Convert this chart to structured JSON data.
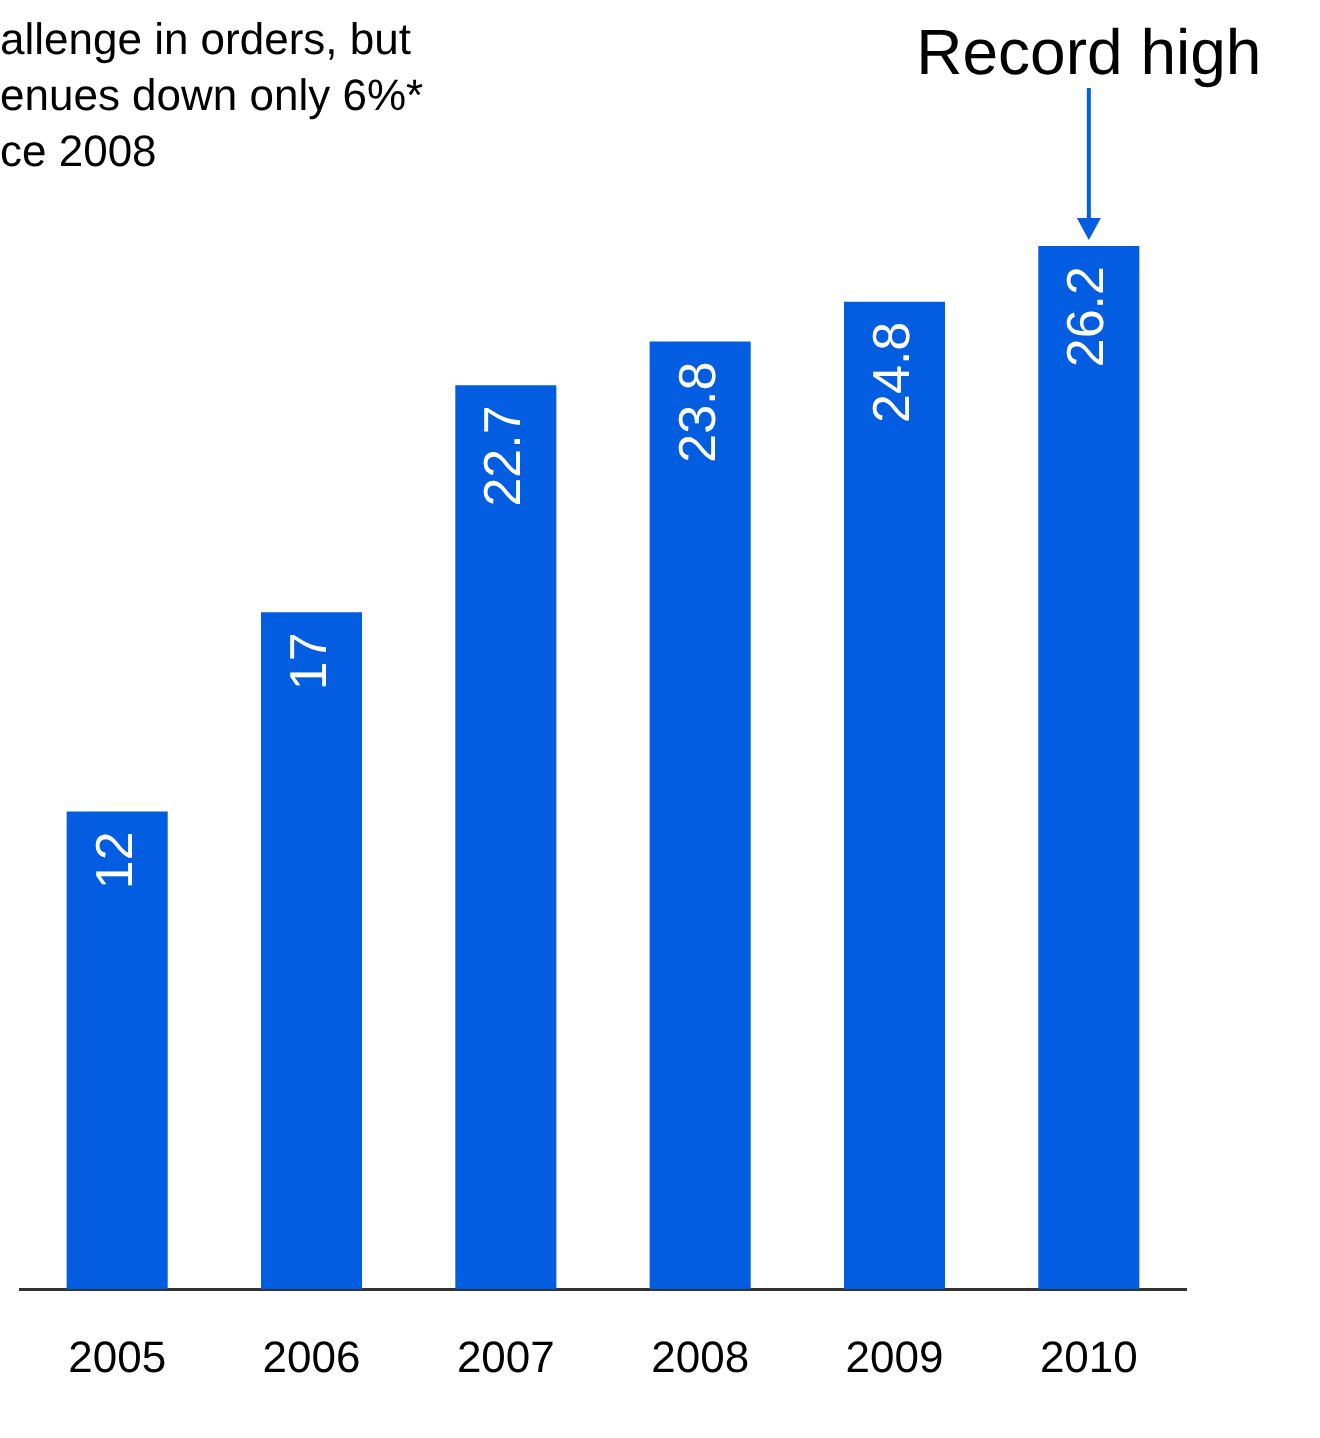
{
  "chart_data": {
    "type": "bar",
    "categories": [
      "2005",
      "2006",
      "2007",
      "2008",
      "2009",
      "2010"
    ],
    "values": [
      12,
      17,
      22.7,
      23.8,
      24.8,
      26.2
    ],
    "color": "#025de0",
    "data_labels": true,
    "grid": false,
    "legend": false,
    "tick_labels": "x",
    "annotations": [
      "allenge in orders, but\nenues down only 6%*\nce 2008",
      {
        "text": "Record high",
        "x": "2010",
        "y": 26.2
      }
    ]
  }
}
